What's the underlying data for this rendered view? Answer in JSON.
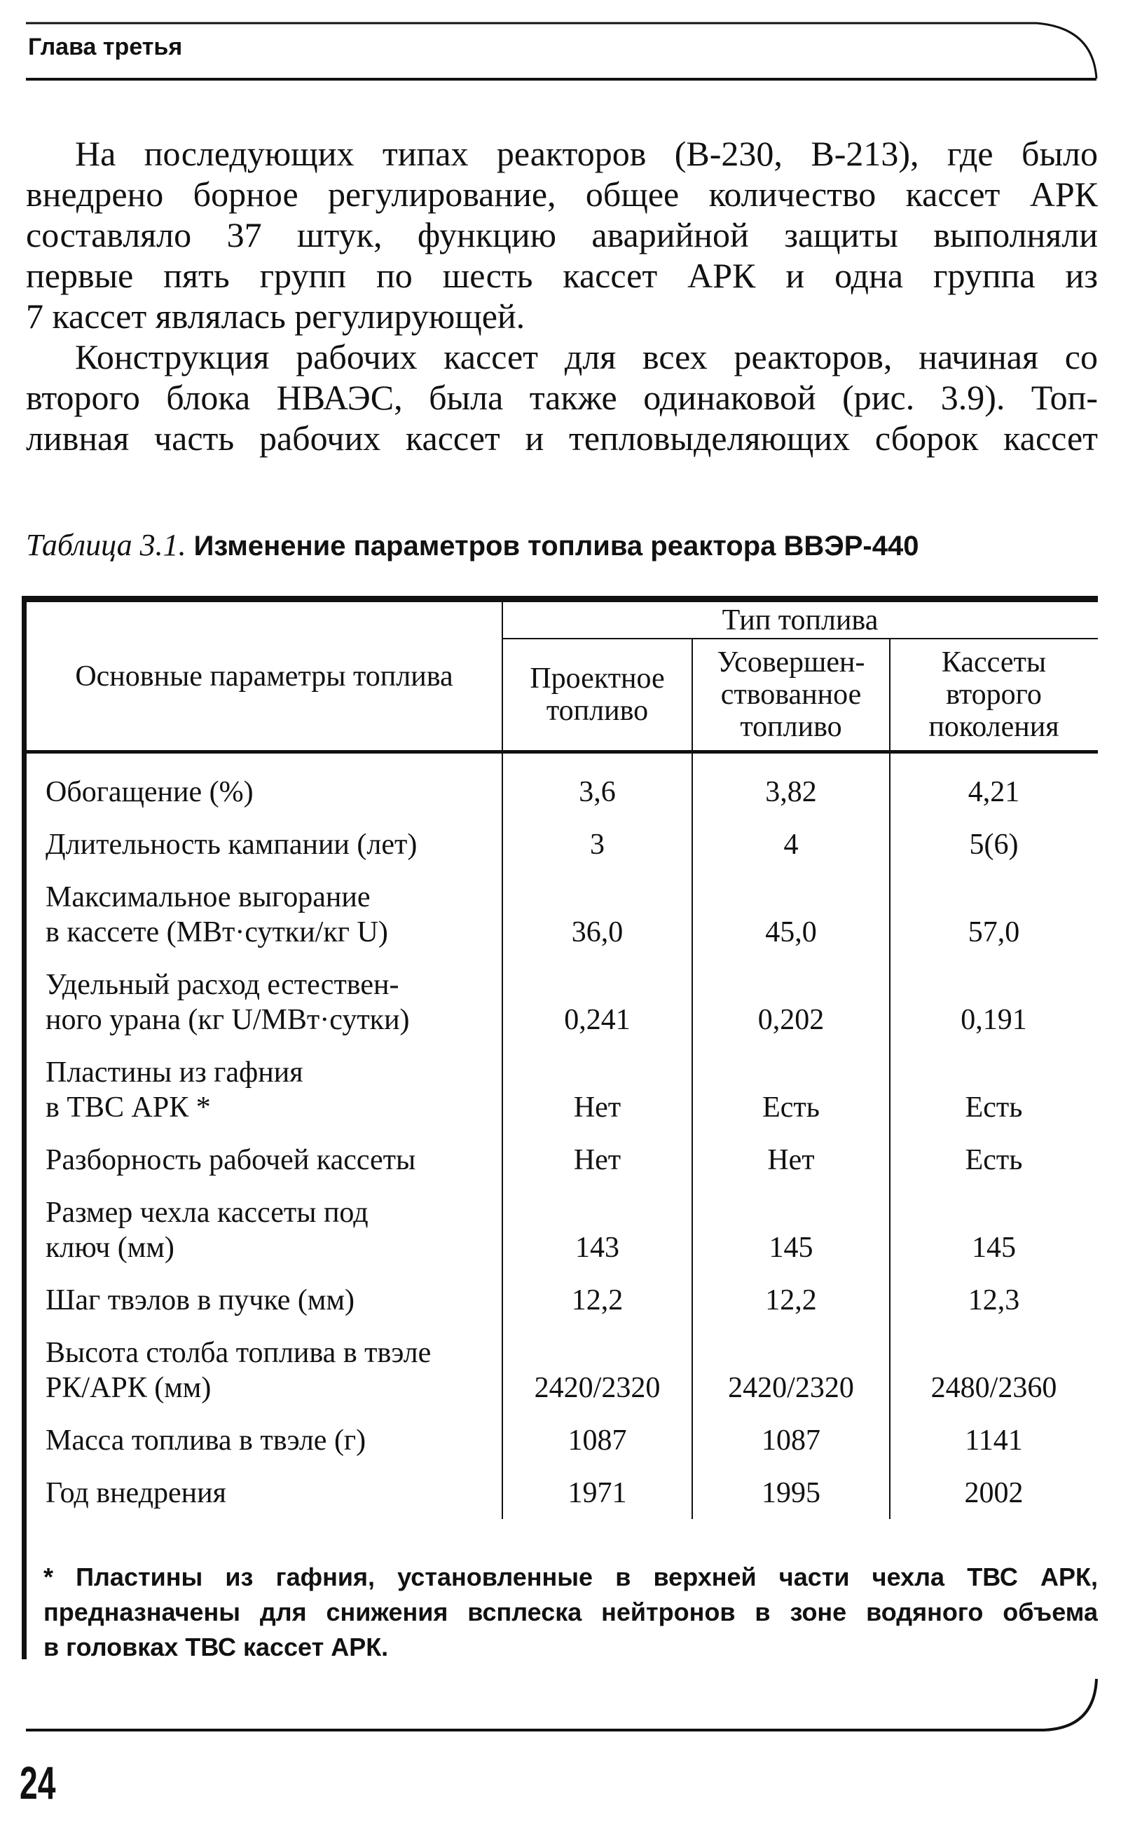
{
  "header": {
    "chapter": "Глава третья"
  },
  "body": {
    "paragraphs": [
      [
        "На последующих типах реакторов (В-230, В-213), где было",
        "внедрено борное регулирование, общее количество кассет АРК",
        "составляло 37 штук, функцию аварийной защиты выполняли",
        "первые пять групп по шесть кассет АРК и одна группа из",
        "7 кассет являлась регулирующей."
      ],
      [
        "Конструкция рабочих кассет для всех реакторов, начиная со",
        "второго блока НВАЭС, была также одинаковой (рис. 3.9). Топ-",
        "ливная часть рабочих кассет и тепловыделяющих сборок кассет"
      ]
    ]
  },
  "table": {
    "caption_label": "Таблица 3.1.",
    "caption_title": "Изменение параметров топлива реактора ВВЭР-440",
    "header": {
      "param": "Основные параметры топлива",
      "group": "Тип топлива",
      "cols": [
        [
          "Проектное",
          "топливо"
        ],
        [
          "Усовершен-",
          "ствованное",
          "топливо"
        ],
        [
          "Кассеты",
          "второго",
          "поколения"
        ]
      ]
    },
    "rows": [
      {
        "label": [
          "Обогащение (%)"
        ],
        "values": [
          "3,6",
          "3,82",
          "4,21"
        ]
      },
      {
        "label": [
          "Длительность кампании (лет)"
        ],
        "values": [
          "3",
          "4",
          "5(6)"
        ]
      },
      {
        "label": [
          "Максимальное выгорание",
          "в кассете (МВт·сутки/кг U)"
        ],
        "values": [
          "36,0",
          "45,0",
          "57,0"
        ]
      },
      {
        "label": [
          "Удельный расход естествен-",
          "ного урана (кг U/МВт·сутки)"
        ],
        "values": [
          "0,241",
          "0,202",
          "0,191"
        ]
      },
      {
        "label": [
          "Пластины из гафния",
          "в ТВС АРК *"
        ],
        "values": [
          "Нет",
          "Есть",
          "Есть"
        ]
      },
      {
        "label": [
          "Разборность рабочей кассеты"
        ],
        "values": [
          "Нет",
          "Нет",
          "Есть"
        ]
      },
      {
        "label": [
          "Размер чехла кассеты под",
          "ключ (мм)"
        ],
        "values": [
          "143",
          "145",
          "145"
        ]
      },
      {
        "label": [
          "Шаг твэлов в пучке (мм)"
        ],
        "values": [
          "12,2",
          "12,2",
          "12,3"
        ]
      },
      {
        "label": [
          "Высота столба топлива в твэле",
          "РК/АРК (мм)"
        ],
        "values": [
          "2420/2320",
          "2420/2320",
          "2480/2360"
        ]
      },
      {
        "label": [
          "Масса топлива в твэле (г)"
        ],
        "values": [
          "1087",
          "1087",
          "1141"
        ]
      },
      {
        "label": [
          "Год внедрения"
        ],
        "values": [
          "1971",
          "1995",
          "2002"
        ]
      }
    ],
    "footnote": [
      "* Пластины из гафния, установленные в верхней части чехла ТВС АРК,",
      "предназначены для снижения всплеска нейтронов в зоне водяного объема",
      "в головках ТВС кассет АРК."
    ]
  },
  "footer": {
    "page_number": "24"
  }
}
